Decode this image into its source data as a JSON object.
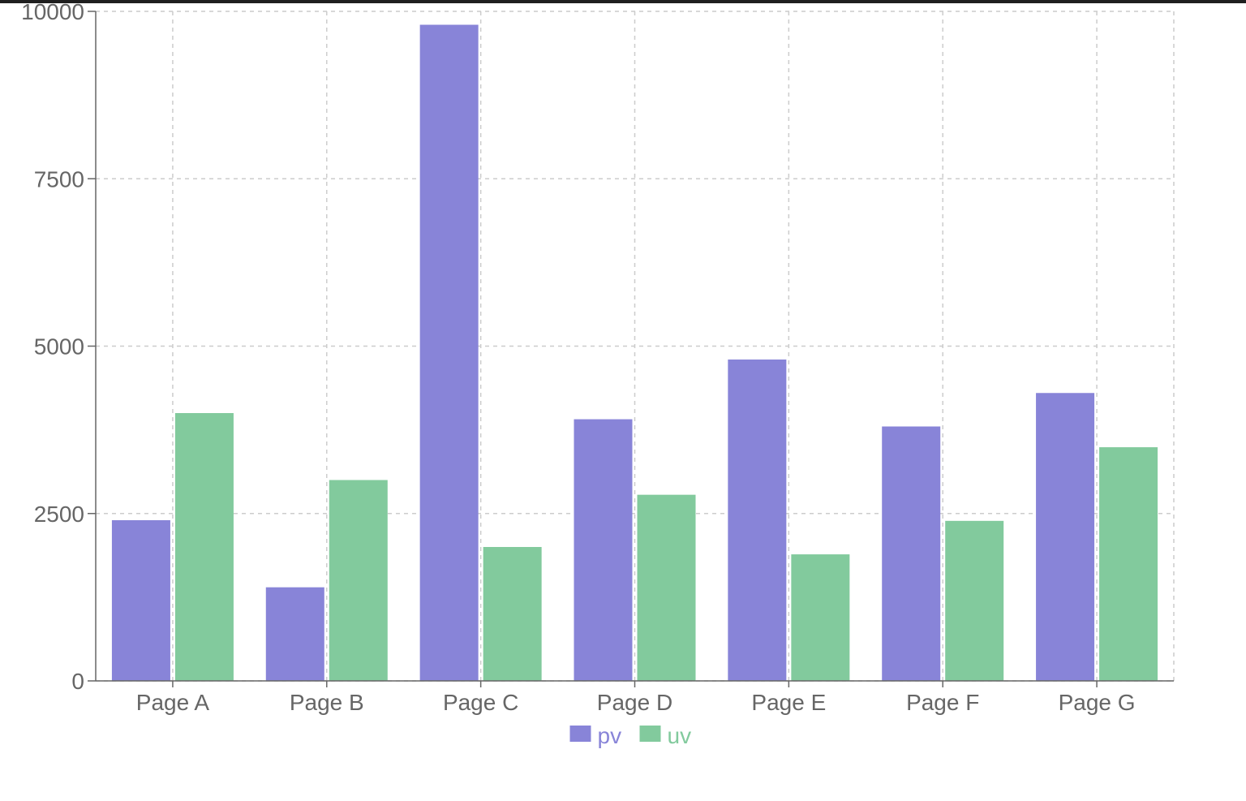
{
  "chart_data": {
    "type": "bar",
    "categories": [
      "Page A",
      "Page B",
      "Page C",
      "Page D",
      "Page E",
      "Page F",
      "Page G"
    ],
    "series": [
      {
        "name": "pv",
        "color": "#8884d8",
        "values": [
          2400,
          1398,
          9800,
          3908,
          4800,
          3800,
          4300
        ]
      },
      {
        "name": "uv",
        "color": "#82ca9d",
        "values": [
          4000,
          3000,
          2000,
          2780,
          1890,
          2390,
          3490
        ]
      }
    ],
    "ylim": [
      0,
      10000
    ],
    "yticks": [
      "0",
      "2500",
      "5000",
      "7500",
      "10000"
    ],
    "grid": true,
    "grid_style": "dashed",
    "legend_position": "bottom-center"
  }
}
